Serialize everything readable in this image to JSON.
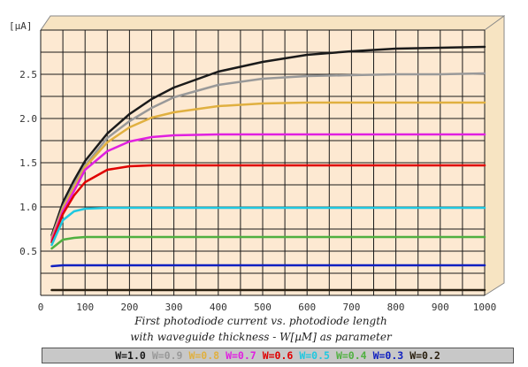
{
  "chart_data": {
    "type": "line",
    "title": "",
    "caption_line1": "First photodiode current vs. photodiode length",
    "caption_line2": "with waveguide thickness - W[µM] as parameter",
    "ylabel": "[µA]",
    "xlabel": "",
    "xlim": [
      0,
      1000
    ],
    "ylim": [
      0,
      3.0
    ],
    "x_ticks": [
      "0",
      "100",
      "200",
      "300",
      "400",
      "500",
      "600",
      "700",
      "800",
      "900",
      "1000"
    ],
    "y_ticks": [
      "0.5",
      "1.0",
      "1.5",
      "2.0",
      "2.5"
    ],
    "grid": true,
    "x": [
      25,
      50,
      75,
      100,
      150,
      200,
      250,
      300,
      400,
      500,
      600,
      700,
      800,
      900,
      1000
    ],
    "series": [
      {
        "name": "W=1.0",
        "color": "#1a1a1a",
        "values": [
          0.68,
          1.05,
          1.3,
          1.52,
          1.83,
          2.05,
          2.22,
          2.35,
          2.53,
          2.64,
          2.72,
          2.76,
          2.79,
          2.8,
          2.81
        ]
      },
      {
        "name": "W=0.9",
        "color": "#999999",
        "values": [
          0.66,
          1.0,
          1.25,
          1.47,
          1.78,
          1.97,
          2.12,
          2.24,
          2.38,
          2.45,
          2.48,
          2.49,
          2.5,
          2.5,
          2.51
        ]
      },
      {
        "name": "W=0.8",
        "color": "#e0b040",
        "values": [
          0.64,
          0.98,
          1.22,
          1.45,
          1.73,
          1.9,
          2.01,
          2.07,
          2.14,
          2.17,
          2.18,
          2.18,
          2.18,
          2.18,
          2.18
        ]
      },
      {
        "name": "W=0.7",
        "color": "#e020e0",
        "values": [
          0.62,
          0.95,
          1.18,
          1.42,
          1.63,
          1.74,
          1.79,
          1.81,
          1.82,
          1.82,
          1.82,
          1.82,
          1.82,
          1.82,
          1.82
        ]
      },
      {
        "name": "W=0.6",
        "color": "#e00000",
        "values": [
          0.6,
          0.92,
          1.13,
          1.28,
          1.42,
          1.46,
          1.47,
          1.47,
          1.47,
          1.47,
          1.47,
          1.47,
          1.47,
          1.47,
          1.47
        ]
      },
      {
        "name": "W=0.5",
        "color": "#20c8e0",
        "values": [
          0.57,
          0.85,
          0.95,
          0.98,
          0.99,
          0.99,
          0.99,
          0.99,
          0.99,
          0.99,
          0.99,
          0.99,
          0.99,
          0.99,
          0.99
        ]
      },
      {
        "name": "W=0.4",
        "color": "#50b040",
        "values": [
          0.53,
          0.63,
          0.65,
          0.66,
          0.66,
          0.66,
          0.66,
          0.66,
          0.66,
          0.66,
          0.66,
          0.66,
          0.66,
          0.66,
          0.66
        ]
      },
      {
        "name": "W=0.3",
        "color": "#1020c0",
        "values": [
          0.33,
          0.34,
          0.34,
          0.34,
          0.34,
          0.34,
          0.34,
          0.34,
          0.34,
          0.34,
          0.34,
          0.34,
          0.34,
          0.34,
          0.34
        ]
      },
      {
        "name": "W=0.2",
        "color": "#2a2010",
        "values": [
          0.06,
          0.06,
          0.06,
          0.06,
          0.06,
          0.06,
          0.06,
          0.06,
          0.06,
          0.06,
          0.06,
          0.06,
          0.06,
          0.06,
          0.06
        ]
      }
    ],
    "colors": {
      "plot_bg": "#fde9d2",
      "side_bg": "#f7e4c2",
      "grid": "#1a1a1a"
    }
  }
}
